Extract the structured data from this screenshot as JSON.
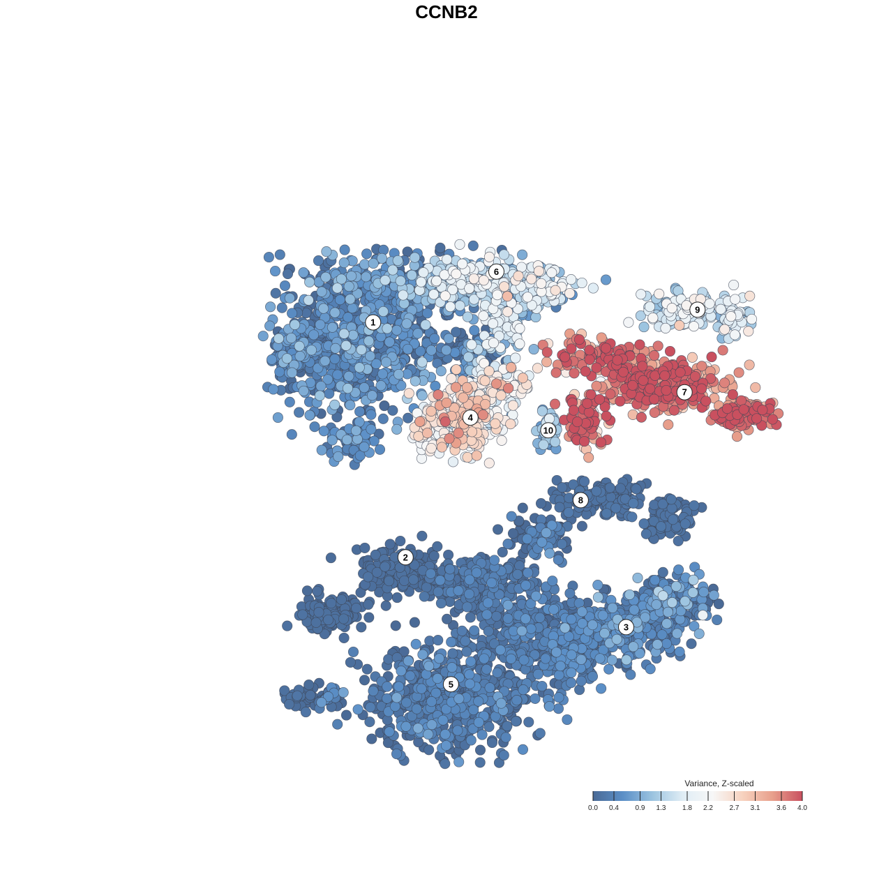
{
  "title": "CCNB2",
  "chart_data": {
    "type": "scatter",
    "title": "CCNB2",
    "color_variable": "Variance, Z-scaled",
    "color_range": [
      0.0,
      4.0
    ],
    "colormap": [
      "#4a6a96",
      "#5b8fc7",
      "#9cc4e0",
      "#e0edf5",
      "#f7f7f7",
      "#f7d2bf",
      "#e8a08c",
      "#c9505f"
    ],
    "legend": {
      "title": "Variance, Z-scaled",
      "placement": "bottom-right",
      "ticks": [
        "0.0",
        "0.4",
        "0.9",
        "1.3",
        "1.8",
        "2.2",
        "2.7",
        "3.1",
        "3.6",
        "4.0"
      ]
    },
    "clusters": [
      {
        "label": "1",
        "x": 0.36,
        "y": 0.69,
        "mean_value": 0.4
      },
      {
        "label": "2",
        "x": 0.41,
        "y": 0.32,
        "mean_value": 0.05
      },
      {
        "label": "3",
        "x": 0.75,
        "y": 0.21,
        "mean_value": 0.3
      },
      {
        "label": "4",
        "x": 0.51,
        "y": 0.54,
        "mean_value": 2.3
      },
      {
        "label": "5",
        "x": 0.48,
        "y": 0.12,
        "mean_value": 0.2
      },
      {
        "label": "6",
        "x": 0.55,
        "y": 0.77,
        "mean_value": 1.3
      },
      {
        "label": "7",
        "x": 0.84,
        "y": 0.58,
        "mean_value": 3.6
      },
      {
        "label": "8",
        "x": 0.68,
        "y": 0.41,
        "mean_value": 0.1
      },
      {
        "label": "9",
        "x": 0.86,
        "y": 0.71,
        "mean_value": 1.6
      },
      {
        "label": "10",
        "x": 0.63,
        "y": 0.52,
        "mean_value": 0.9
      }
    ],
    "grid": false,
    "axes_visible": false
  }
}
